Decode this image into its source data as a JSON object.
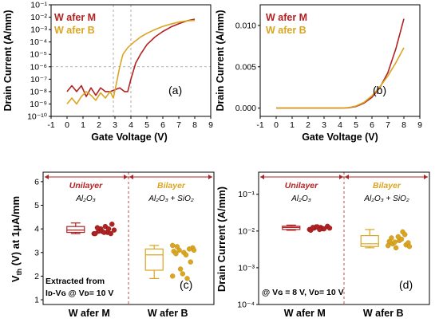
{
  "colors": {
    "wafer_m": "#b22222",
    "wafer_b": "#daa520",
    "guide": "#999999"
  },
  "chart_data": [
    {
      "panel": "(a)",
      "type": "line",
      "xlabel": "Gate Voltage (V)",
      "ylabel": "Drain Current (A/mm)",
      "log_y": true,
      "xlim": [
        -1,
        9
      ],
      "ylim": [
        1e-10,
        0.1
      ],
      "xticks": [
        "-1",
        "0",
        "1",
        "2",
        "3",
        "4",
        "5",
        "6",
        "7",
        "8",
        "9"
      ],
      "yticks": [
        "10⁻¹⁰",
        "10⁻⁹",
        "10⁻⁸",
        "10⁻⁷",
        "10⁻⁶",
        "10⁻⁵",
        "10⁻⁴",
        "10⁻³",
        "10⁻²",
        "10⁻¹"
      ],
      "guides": {
        "h": 1e-06,
        "v": [
          2.9,
          4.0
        ]
      },
      "series": [
        {
          "name": "W afer M",
          "x": [
            0,
            0.3,
            0.6,
            0.9,
            1.2,
            1.5,
            1.8,
            2.1,
            2.4,
            2.7,
            3.0,
            3.3,
            3.6,
            3.8,
            4.0,
            4.3,
            4.6,
            5.0,
            5.5,
            6.0,
            6.5,
            7.0,
            7.5,
            8.0
          ],
          "y": [
            1e-08,
            3e-08,
            1e-08,
            3e-08,
            4e-09,
            2e-08,
            5e-09,
            2e-08,
            1e-08,
            1e-08,
            1.4e-08,
            2e-08,
            1e-08,
            1e-08,
            1e-07,
            2e-06,
            1e-05,
            6e-05,
            0.00025,
            0.0007,
            0.0016,
            0.003,
            0.005,
            0.007
          ]
        },
        {
          "name": "W afer B",
          "x": [
            0,
            0.3,
            0.6,
            0.9,
            1.2,
            1.5,
            1.8,
            2.1,
            2.4,
            2.7,
            2.9,
            3.1,
            3.3,
            3.5,
            3.8,
            4.2,
            4.6,
            5.0,
            5.5,
            6.0,
            6.5,
            7.0,
            7.5,
            8.0
          ],
          "y": [
            1e-09,
            3e-09,
            1e-09,
            4e-09,
            1e-08,
            5e-09,
            2e-09,
            8e-09,
            3e-09,
            1e-08,
            3e-09,
            5e-08,
            1e-06,
            1e-05,
            3.5e-05,
            0.0001,
            0.00025,
            0.0005,
            0.001,
            0.0018,
            0.0028,
            0.004,
            0.005,
            0.0055
          ]
        }
      ]
    },
    {
      "panel": "(b)",
      "type": "line",
      "xlabel": "Gate Voltage (V)",
      "ylabel": "Drain Current (A/mm)",
      "xlim": [
        -1,
        9
      ],
      "ylim": [
        -0.001,
        0.0125
      ],
      "xticks": [
        "-1",
        "0",
        "1",
        "2",
        "3",
        "4",
        "5",
        "6",
        "7",
        "8",
        "9"
      ],
      "yticks": [
        "0.000",
        "0.005",
        "0.010"
      ],
      "series": [
        {
          "name": "W afer M",
          "x": [
            0,
            1,
            2,
            3,
            4,
            4.5,
            5,
            5.5,
            6,
            6.5,
            7,
            7.5,
            8
          ],
          "y": [
            0,
            0,
            0,
            0,
            0,
            3e-05,
            0.0002,
            0.0006,
            0.0013,
            0.0025,
            0.0043,
            0.0072,
            0.0108
          ]
        },
        {
          "name": "W afer B",
          "x": [
            0,
            1,
            2,
            3,
            4,
            4.5,
            5,
            5.5,
            6,
            6.5,
            7,
            7.5,
            8
          ],
          "y": [
            0,
            0,
            0,
            0,
            0,
            5e-05,
            0.00025,
            0.0007,
            0.0015,
            0.0026,
            0.0039,
            0.0055,
            0.0073
          ]
        }
      ]
    },
    {
      "panel": "(c)",
      "type": "box",
      "ylabel": "Vₜₕ (V) at 1μA/mm",
      "ylabel_main": "V",
      "ylabel_sub": "th",
      "ylabel_rest": " (V) at 1μA/mm",
      "ylim": [
        0.8,
        6.4
      ],
      "yticks": [
        "1",
        "2",
        "3",
        "4",
        "5",
        "6"
      ],
      "categories": [
        "W afer M",
        "W afer B"
      ],
      "boxes": [
        {
          "min": 3.8,
          "q1": 3.85,
          "median": 3.95,
          "q3": 4.1,
          "max": 4.25
        },
        {
          "min": 1.9,
          "q1": 2.25,
          "median": 2.9,
          "q3": 3.15,
          "max": 3.3
        }
      ],
      "points": [
        [
          3.8,
          3.9,
          4.0,
          4.1,
          3.85,
          4.2,
          3.95,
          3.8,
          4.05,
          3.9,
          3.85,
          4.0,
          3.8
        ],
        [
          3.3,
          3.25,
          3.1,
          3.0,
          2.9,
          2.6,
          3.2,
          3.05,
          2.95,
          2.3,
          2.1,
          1.9,
          3.15,
          3.1,
          2.0
        ]
      ],
      "groups": [
        {
          "title": "Unilayer",
          "sub": "Al₂O₃"
        },
        {
          "title": "Bilayer",
          "sub": "Al₂O₃ + SiO₂"
        }
      ],
      "annotation_l1": "Extracted from",
      "annotation_l2": "Iᴅ-Vɢ @ Vᴅ= 10 V"
    },
    {
      "panel": "(d)",
      "type": "box",
      "ylabel": "Drain Current (A/mm)",
      "log_y": true,
      "ylim": [
        0.0001,
        0.4
      ],
      "yticks": [
        "10⁻⁴",
        "10⁻³",
        "10⁻²",
        "10⁻¹"
      ],
      "categories": [
        "W afer M",
        "W afer B"
      ],
      "boxes": [
        {
          "min": 0.0105,
          "q1": 0.011,
          "median": 0.0125,
          "q3": 0.0135,
          "max": 0.0145
        },
        {
          "min": 0.0035,
          "q1": 0.0038,
          "median": 0.0045,
          "q3": 0.0075,
          "max": 0.011
        }
      ],
      "points": [
        [
          0.011,
          0.012,
          0.013,
          0.0125,
          0.0115,
          0.0135,
          0.012,
          0.0105,
          0.0125,
          0.013,
          0.011,
          0.0115
        ],
        [
          0.004,
          0.0045,
          0.005,
          0.0055,
          0.006,
          0.0042,
          0.0048,
          0.0052,
          0.0065,
          0.0035,
          0.007,
          0.0095,
          0.008,
          0.0038
        ]
      ],
      "groups": [
        {
          "title": "Unilayer",
          "sub": "Al₂O₃"
        },
        {
          "title": "Bilayer",
          "sub": "Al₂O₃ + SiO₂"
        }
      ],
      "annotation": "@ Vɢ = 8 V, Vᴅ= 10 V"
    }
  ]
}
